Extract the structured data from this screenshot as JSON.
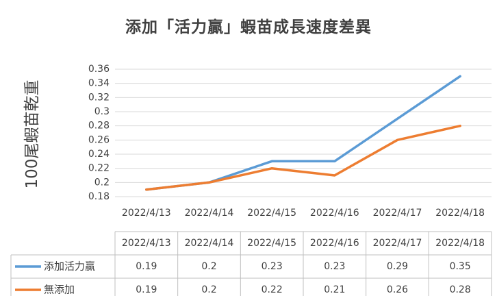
{
  "chart_data": {
    "type": "line",
    "title": "添加「活力贏」蝦苗成長速度差異",
    "xlabel": "",
    "ylabel": "100尾蝦苗乾重",
    "categories": [
      "2022/4/13",
      "2022/4/14",
      "2022/4/15",
      "2022/4/16",
      "2022/4/17",
      "2022/4/18"
    ],
    "ylim": [
      0.18,
      0.36
    ],
    "yticks": [
      "0.36",
      "0.34",
      "0.32",
      "0.3",
      "0.28",
      "0.26",
      "0.24",
      "0.22",
      "0.2",
      "0.18"
    ],
    "grid": true,
    "series": [
      {
        "name": "添加活力贏",
        "color": "#5B9BD5",
        "values": [
          0.19,
          0.2,
          0.23,
          0.23,
          0.29,
          0.35
        ],
        "labels": [
          "0.19",
          "0.2",
          "0.23",
          "0.23",
          "0.29",
          "0.35"
        ]
      },
      {
        "name": "無添加",
        "color": "#ED7D31",
        "values": [
          0.19,
          0.2,
          0.22,
          0.21,
          0.26,
          0.28
        ],
        "labels": [
          "0.19",
          "0.2",
          "0.22",
          "0.21",
          "0.26",
          "0.28"
        ]
      }
    ],
    "data_table": true
  }
}
